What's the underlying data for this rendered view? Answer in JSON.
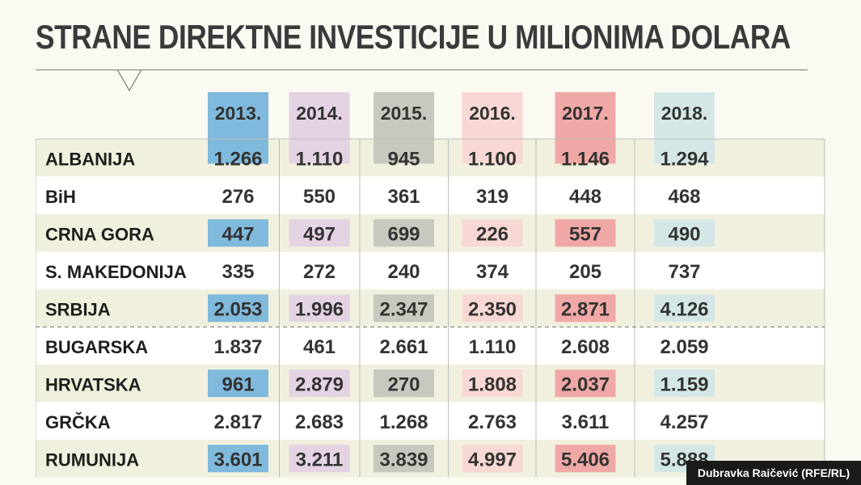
{
  "title": "STRANE DIREKTNE INVESTICIJE U MILIONIMA DOLARA",
  "credit": "Dubravka Raičević (RFE/RL)",
  "colors": {
    "background": "#fbfaf2",
    "stripe": "#f1f0de",
    "grid_line": "#bdbdbd",
    "columns": [
      "#7fb9dc",
      "#e3d3e3",
      "#c8c8c0",
      "#f8d8d4",
      "#f0a8a6",
      "#d4e7e6"
    ]
  },
  "chart_data": {
    "type": "table",
    "title": "STRANE DIREKTNE INVESTICIJE U MILIONIMA DOLARA",
    "columns": [
      "2013.",
      "2014.",
      "2015.",
      "2016.",
      "2017.",
      "2018."
    ],
    "rows": [
      {
        "label": "ALBANIJA",
        "values": [
          "1.266",
          "1.110",
          "945",
          "1.100",
          "1.146",
          "1.294"
        ]
      },
      {
        "label": "BiH",
        "values": [
          "276",
          "550",
          "361",
          "319",
          "448",
          "468"
        ]
      },
      {
        "label": "CRNA GORA",
        "values": [
          "447",
          "497",
          "699",
          "226",
          "557",
          "490"
        ]
      },
      {
        "label": "S. MAKEDONIJA",
        "values": [
          "335",
          "272",
          "240",
          "374",
          "205",
          "737"
        ]
      },
      {
        "label": "SRBIJA",
        "values": [
          "2.053",
          "1.996",
          "2.347",
          "2.350",
          "2.871",
          "4.126"
        ]
      },
      {
        "label": "BUGARSKA",
        "values": [
          "1.837",
          "461",
          "2.661",
          "1.110",
          "2.608",
          "2.059"
        ]
      },
      {
        "label": "HRVATSKA",
        "values": [
          "961",
          "2.879",
          "270",
          "1.808",
          "2.037",
          "1.159"
        ]
      },
      {
        "label": "GRČKA",
        "values": [
          "2.817",
          "2.683",
          "1.268",
          "2.763",
          "3.611",
          "4.257"
        ]
      },
      {
        "label": "RUMUNIJA",
        "values": [
          "3.601",
          "3.211",
          "3.839",
          "4.997",
          "5.406",
          "5.888"
        ]
      }
    ],
    "group_divider_after_row": "SRBIJA"
  }
}
